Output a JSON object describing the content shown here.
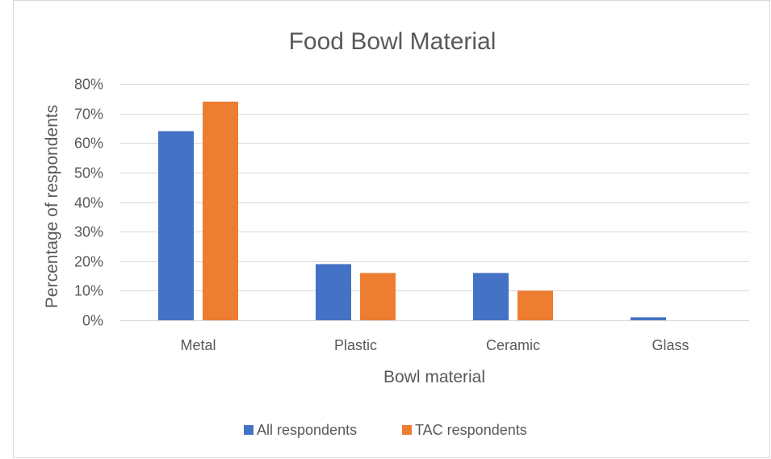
{
  "chart_data": {
    "type": "bar",
    "title": "Food Bowl Material",
    "xlabel": "Bowl material",
    "ylabel": "Percentage of respondents",
    "categories": [
      "Metal",
      "Plastic",
      "Ceramic",
      "Glass"
    ],
    "series": [
      {
        "name": "All respondents",
        "values": [
          64,
          19,
          16,
          1
        ],
        "color": "#4472c4"
      },
      {
        "name": "TAC respondents",
        "values": [
          74,
          16,
          10,
          0
        ],
        "color": "#ed7d31"
      }
    ],
    "ylim": [
      0,
      80
    ],
    "yticks": [
      0,
      10,
      20,
      30,
      40,
      50,
      60,
      70,
      80
    ],
    "ytick_labels": [
      "0%",
      "10%",
      "20%",
      "30%",
      "40%",
      "50%",
      "60%",
      "70%",
      "80%"
    ],
    "grid": true,
    "legend_position": "bottom"
  }
}
